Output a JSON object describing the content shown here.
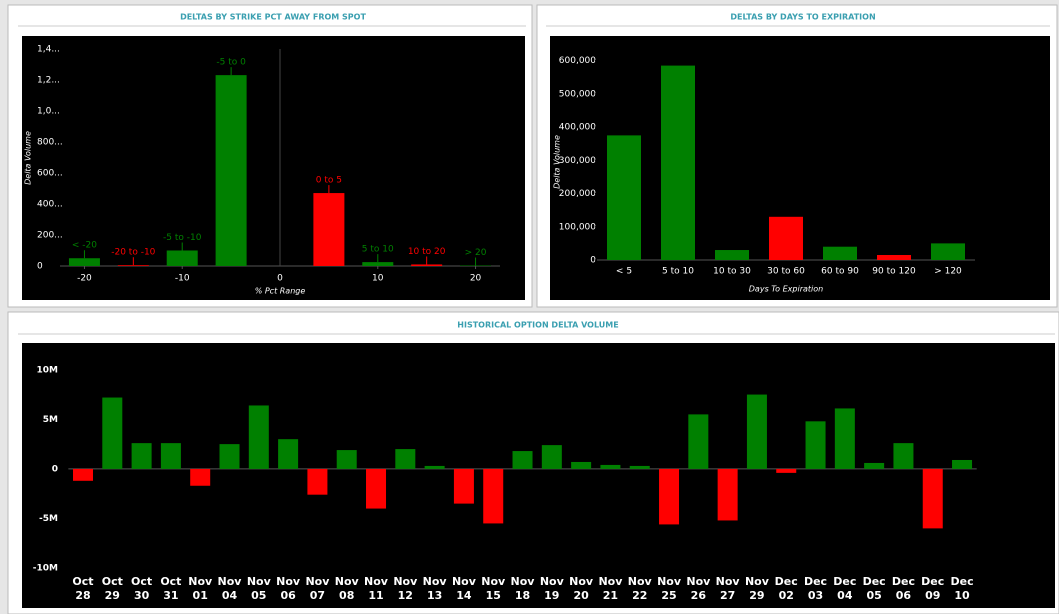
{
  "chart_data": [
    {
      "type": "bar",
      "title": "DELTAS BY STRIKE PCT AWAY FROM SPOT",
      "x_label": "% Pct Range",
      "y_label": "Delta Volume",
      "x": [
        -20,
        -15,
        -10,
        -5,
        5,
        10,
        15,
        20
      ],
      "labels": [
        "< -20",
        "-20 to -10",
        "-5 to -10",
        "-5 to 0",
        "0 to 5",
        "5 to 10",
        "10 to 20",
        "> 20"
      ],
      "values": [
        50,
        5,
        100,
        1230,
        470,
        25,
        10,
        3
      ],
      "colors": [
        "#008000",
        "#ff0000",
        "#008000",
        "#008000",
        "#ff0000",
        "#008000",
        "#ff0000",
        "#008000"
      ],
      "xlim": [
        -22.5,
        22.5
      ],
      "xticks": [
        -20,
        -10,
        0,
        10,
        20
      ],
      "ylim": [
        0,
        1450
      ],
      "yticks": [
        0,
        {
          "value": 200,
          "label": "200..."
        },
        {
          "value": 400,
          "label": "400..."
        },
        {
          "value": 600,
          "label": "600..."
        },
        {
          "value": 800,
          "label": "800..."
        },
        {
          "value": 1000,
          "label": "1,0..."
        },
        {
          "value": 1200,
          "label": "1,2..."
        },
        {
          "value": 1400,
          "label": "1,4..."
        }
      ]
    },
    {
      "type": "bar",
      "title": "DELTAS BY DAYS TO EXPIRATION",
      "x_label": "Days To Expiration",
      "y_label": "Delta Volume",
      "categories": [
        "< 5",
        "5 to 10",
        "10 to 30",
        "30 to 60",
        "60 to 90",
        "90 to 120",
        "> 120"
      ],
      "values": [
        375000,
        585000,
        30000,
        130000,
        40000,
        15000,
        50000
      ],
      "colors": [
        "#008000",
        "#008000",
        "#008000",
        "#ff0000",
        "#008000",
        "#ff0000",
        "#008000"
      ],
      "ylim": [
        0,
        650000
      ],
      "yticks": [
        0,
        {
          "value": 100000,
          "label": "100,000"
        },
        {
          "value": 200000,
          "label": "200,000"
        },
        {
          "value": 300000,
          "label": "300,000"
        },
        {
          "value": 400000,
          "label": "400,000"
        },
        {
          "value": 500000,
          "label": "500,000"
        },
        {
          "value": 600000,
          "label": "600,000"
        }
      ]
    },
    {
      "type": "bar",
      "title": "HISTORICAL OPTION DELTA VOLUME",
      "categories": [
        "Oct 28",
        "Oct 29",
        "Oct 30",
        "Oct 31",
        "Nov 01",
        "Nov 04",
        "Nov 05",
        "Nov 06",
        "Nov 07",
        "Nov 08",
        "Nov 11",
        "Nov 12",
        "Nov 13",
        "Nov 14",
        "Nov 15",
        "Nov 18",
        "Nov 19",
        "Nov 20",
        "Nov 21",
        "Nov 22",
        "Nov 25",
        "Nov 26",
        "Nov 27",
        "Nov 29",
        "Dec 02",
        "Dec 03",
        "Dec 04",
        "Dec 05",
        "Dec 06",
        "Dec 09",
        "Dec 10"
      ],
      "values": [
        -1.2,
        7.2,
        2.6,
        2.6,
        -1.7,
        2.5,
        6.4,
        3.0,
        -2.6,
        1.9,
        -4.0,
        2.0,
        0.3,
        -3.5,
        -5.5,
        1.8,
        2.4,
        0.7,
        0.4,
        0.3,
        -5.6,
        5.5,
        -5.2,
        7.5,
        -0.4,
        4.8,
        6.1,
        0.6,
        2.6,
        -6.0,
        0.9
      ],
      "positive_color": "#008000",
      "negative_color": "#ff0000",
      "ylim": [
        -10.4,
        12.5
      ],
      "yticks": [
        {
          "value": -10,
          "label": "-10M"
        },
        {
          "value": -5,
          "label": "-5M"
        },
        0,
        {
          "value": 5,
          "label": "5M"
        },
        {
          "value": 10,
          "label": "10M"
        }
      ]
    }
  ]
}
